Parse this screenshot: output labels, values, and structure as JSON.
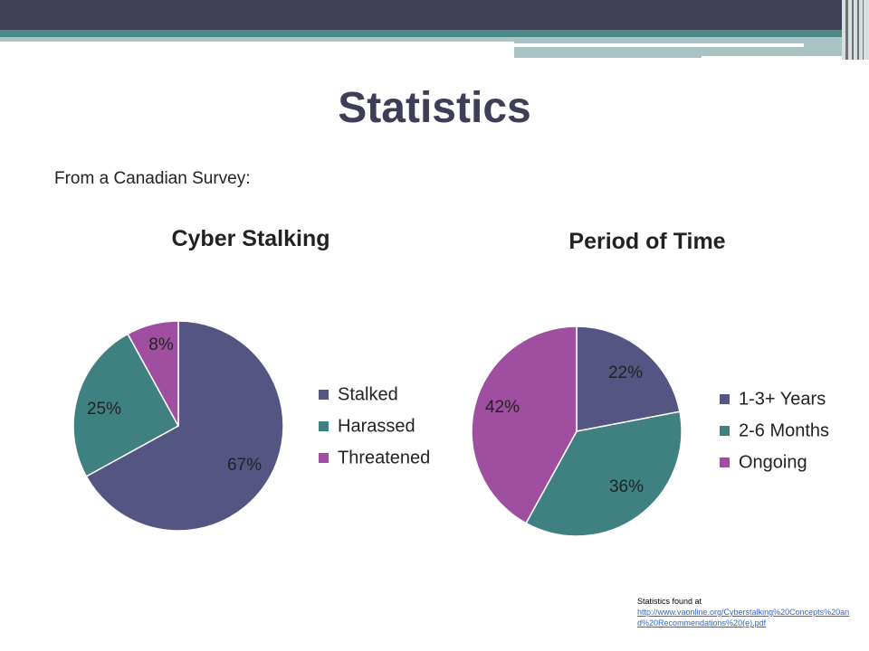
{
  "slide": {
    "title": "Statistics",
    "subtitle": "From a Canadian Survey:",
    "source_label": "Statistics found at",
    "source_link": "http://www.vaonline.org/Cyberstalking%20Concepts%20and%20Recommendations%20(e).pdf",
    "colors": {
      "title": "#3e3e58",
      "banner_dark": "#3f3f55",
      "banner_teal": "#4c8a8a",
      "banner_light": "#a9c3c3"
    }
  },
  "chart_data": [
    {
      "type": "pie",
      "title": "Cyber Stalking",
      "categories": [
        "Stalked",
        "Harassed",
        "Threatened"
      ],
      "values": [
        67,
        25,
        8
      ],
      "labels": [
        "67%",
        "25%",
        "8%"
      ],
      "colors": [
        "#555584",
        "#3f8180",
        "#a04ea0"
      ],
      "legend": "right"
    },
    {
      "type": "pie",
      "title": "Period of Time",
      "categories": [
        "1-3+ Years",
        "2-6 Months",
        "Ongoing"
      ],
      "values": [
        22,
        36,
        42
      ],
      "labels": [
        "22%",
        "36%",
        "42%"
      ],
      "colors": [
        "#555584",
        "#3f8180",
        "#a04ea0"
      ],
      "legend": "right"
    }
  ]
}
